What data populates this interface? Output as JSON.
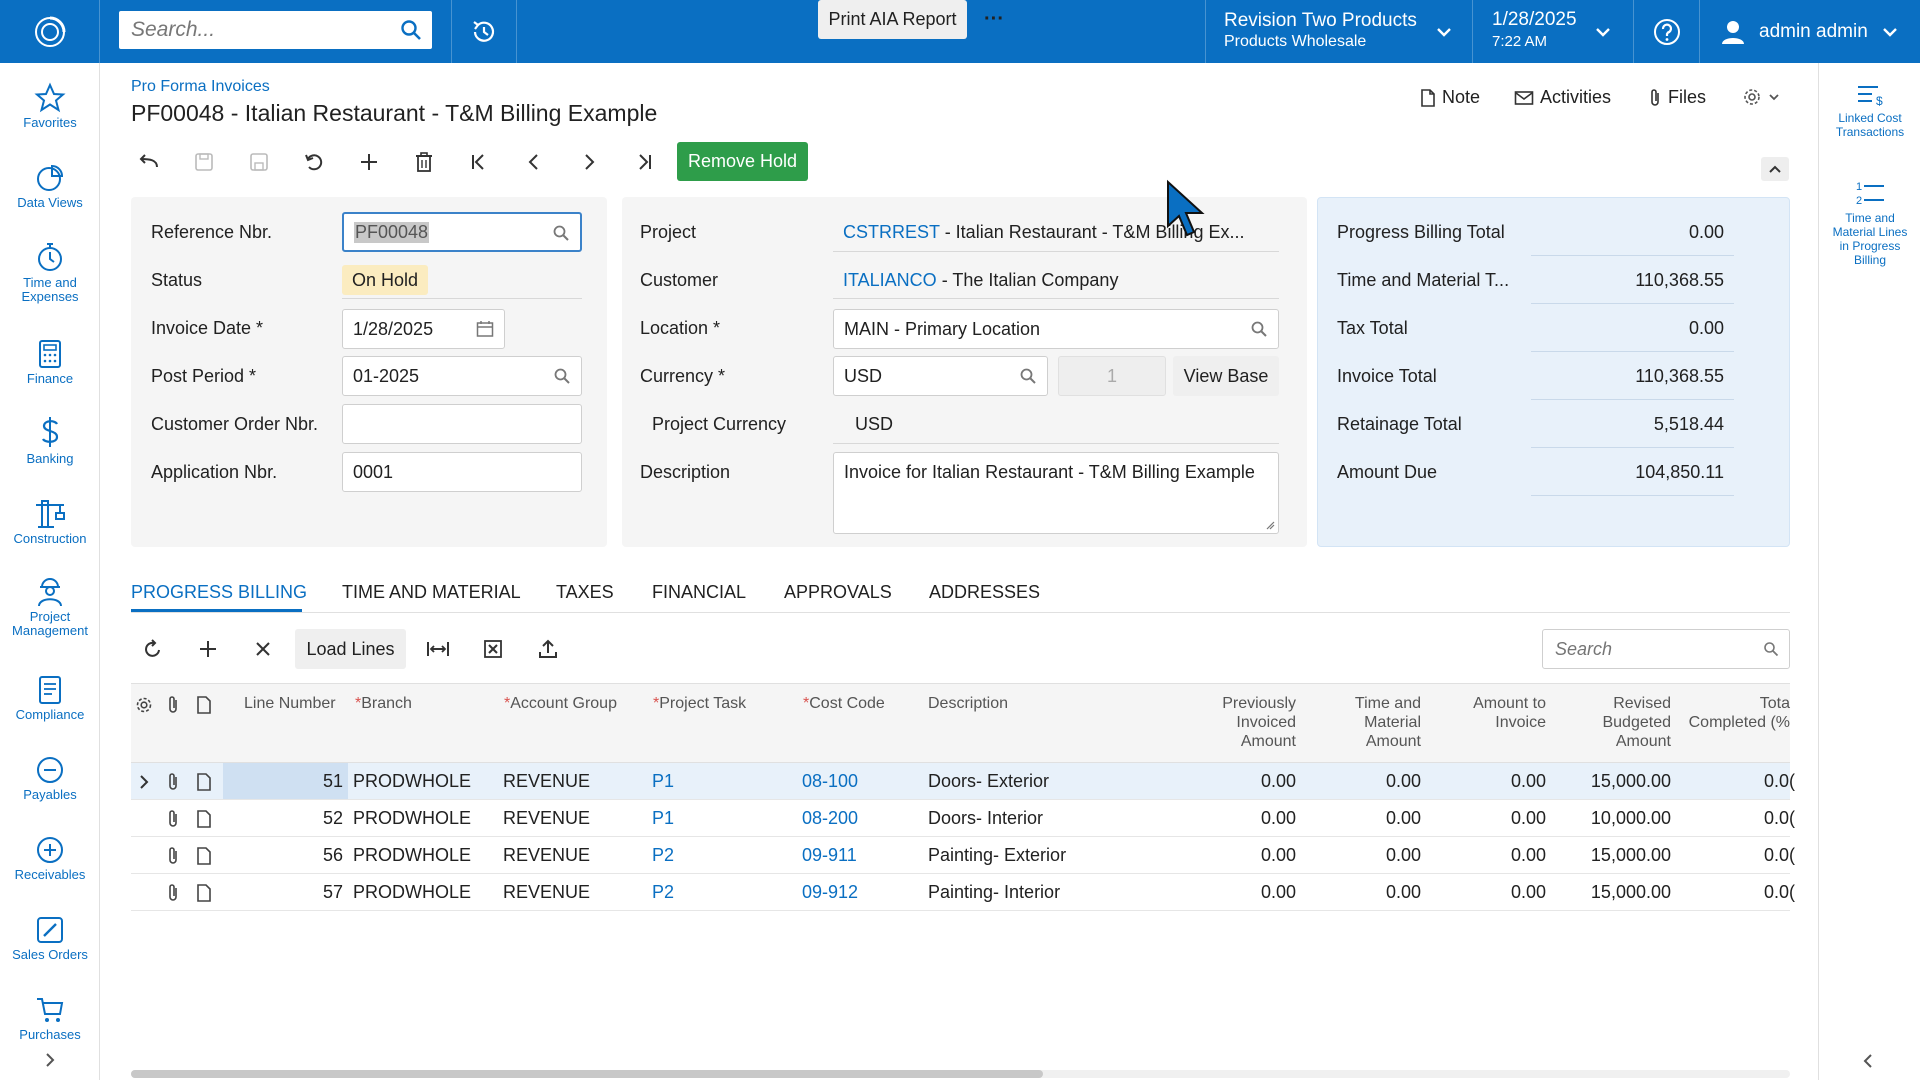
{
  "header": {
    "search_placeholder": "Search...",
    "company": "Revision Two Products",
    "branch": "Products Wholesale",
    "date": "1/28/2025",
    "time": "7:22 AM",
    "user": "admin admin"
  },
  "sidebar": {
    "items": [
      {
        "label": "Favorites",
        "icon": "star-icon"
      },
      {
        "label": "Data Views",
        "icon": "pie-chart-icon"
      },
      {
        "label": "Time and Expenses",
        "icon": "stopwatch-icon"
      },
      {
        "label": "Finance",
        "icon": "calculator-icon"
      },
      {
        "label": "Banking",
        "icon": "dollar-icon"
      },
      {
        "label": "Construction",
        "icon": "crane-icon"
      },
      {
        "label": "Project Management",
        "icon": "worker-icon"
      },
      {
        "label": "Compliance",
        "icon": "document-icon"
      },
      {
        "label": "Payables",
        "icon": "minus-circle-icon"
      },
      {
        "label": "Receivables",
        "icon": "plus-circle-icon"
      },
      {
        "label": "Sales Orders",
        "icon": "pencil-icon"
      },
      {
        "label": "Purchases",
        "icon": "cart-icon"
      }
    ]
  },
  "right_sidebar": {
    "items": [
      {
        "label": "Linked Cost Transactions"
      },
      {
        "label": "Time and Material Lines in Progress Billing"
      }
    ]
  },
  "page": {
    "breadcrumb": "Pro Forma Invoices",
    "title": "PF00048 - Italian Restaurant - T&M Billing Example",
    "note": "Note",
    "activities": "Activities",
    "files": "Files"
  },
  "toolbar": {
    "remove_hold": "Remove Hold",
    "print_aia": "Print AIA Report",
    "more": "···"
  },
  "form": {
    "reference_nbr": {
      "label": "Reference Nbr.",
      "value": "PF00048"
    },
    "status": {
      "label": "Status",
      "value": "On Hold"
    },
    "invoice_date": {
      "label": "Invoice Date *",
      "value": "1/28/2025"
    },
    "post_period": {
      "label": "Post Period *",
      "value": "01-2025"
    },
    "customer_order_nbr": {
      "label": "Customer Order Nbr.",
      "value": ""
    },
    "application_nbr": {
      "label": "Application Nbr.",
      "value": "0001"
    },
    "project": {
      "label": "Project",
      "code": "CSTRREST",
      "name": " - Italian Restaurant - T&M Billing Ex..."
    },
    "customer": {
      "label": "Customer",
      "code": "ITALIANCO",
      "name": " - The Italian Company"
    },
    "location": {
      "label": "Location *",
      "value": "MAIN - Primary Location"
    },
    "currency": {
      "label": "Currency *",
      "value": "USD",
      "rate": "1",
      "view_base": "View Base"
    },
    "project_currency": {
      "label": "Project Currency",
      "value": "USD"
    },
    "description": {
      "label": "Description",
      "value": "Invoice for Italian Restaurant - T&M Billing Example"
    }
  },
  "totals": [
    {
      "label": "Progress Billing Total",
      "value": "0.00"
    },
    {
      "label": "Time and Material T...",
      "value": "110,368.55"
    },
    {
      "label": "Tax Total",
      "value": "0.00"
    },
    {
      "label": "Invoice Total",
      "value": "110,368.55"
    },
    {
      "label": "Retainage Total",
      "value": "5,518.44"
    },
    {
      "label": "Amount Due",
      "value": "104,850.11"
    }
  ],
  "tabs": [
    "PROGRESS BILLING",
    "TIME AND MATERIAL",
    "TAXES",
    "FINANCIAL",
    "APPROVALS",
    "ADDRESSES"
  ],
  "grid": {
    "load_lines": "Load Lines",
    "search_placeholder": "Search",
    "headers": {
      "line": "Line Number",
      "branch": "Branch",
      "account_group": "Account Group",
      "project_task": "Project Task",
      "cost_code": "Cost Code",
      "description": "Description",
      "prev_inv_1": "Previously",
      "prev_inv_2": "Invoiced",
      "prev_inv_3": "Amount",
      "tm_1": "Time and",
      "tm_2": "Material",
      "tm_3": "Amount",
      "amt_1": "Amount to",
      "amt_2": "Invoice",
      "rev_1": "Revised",
      "rev_2": "Budgeted",
      "rev_3": "Amount",
      "tot_1": "Tota",
      "tot_2": "Completed (%"
    },
    "rows": [
      {
        "line": "51",
        "branch": "PRODWHOLE",
        "account_group": "REVENUE",
        "task": "P1",
        "cost_code": "08-100",
        "description": "Doors- Exterior",
        "prev": "0.00",
        "tm": "0.00",
        "amt": "0.00",
        "rev": "15,000.00",
        "pct": "0.0("
      },
      {
        "line": "52",
        "branch": "PRODWHOLE",
        "account_group": "REVENUE",
        "task": "P1",
        "cost_code": "08-200",
        "description": "Doors- Interior",
        "prev": "0.00",
        "tm": "0.00",
        "amt": "0.00",
        "rev": "10,000.00",
        "pct": "0.0("
      },
      {
        "line": "56",
        "branch": "PRODWHOLE",
        "account_group": "REVENUE",
        "task": "P2",
        "cost_code": "09-911",
        "description": "Painting- Exterior",
        "prev": "0.00",
        "tm": "0.00",
        "amt": "0.00",
        "rev": "15,000.00",
        "pct": "0.0("
      },
      {
        "line": "57",
        "branch": "PRODWHOLE",
        "account_group": "REVENUE",
        "task": "P2",
        "cost_code": "09-912",
        "description": "Painting- Interior",
        "prev": "0.00",
        "tm": "0.00",
        "amt": "0.00",
        "rev": "15,000.00",
        "pct": "0.0("
      }
    ]
  },
  "colors": {
    "brand": "#0a6fc2",
    "green": "#2e9d4a",
    "badge": "#fbecc0",
    "totals_panel": "#e8f1fa"
  }
}
